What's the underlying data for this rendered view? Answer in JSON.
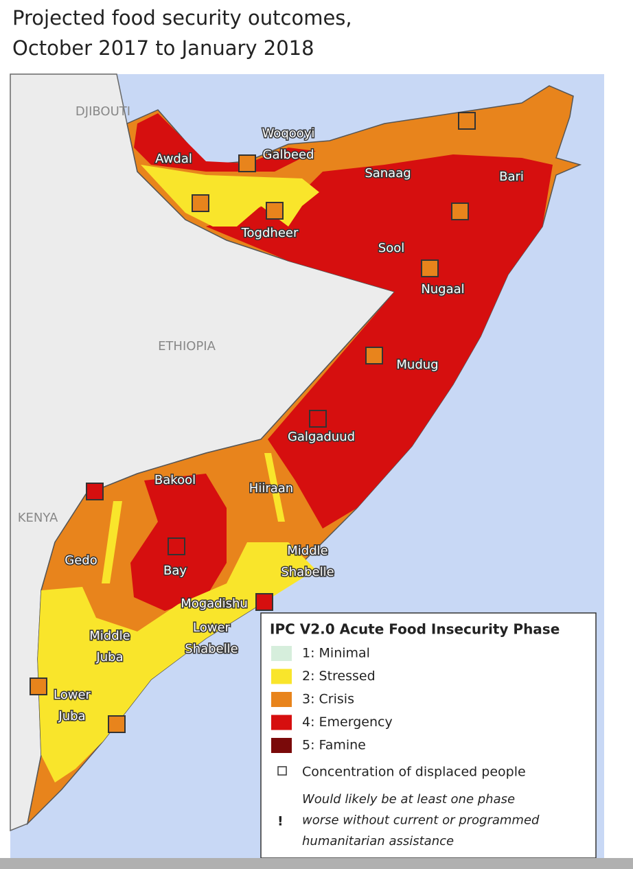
{
  "title": "Projected food security outcomes, October 2017 to January 2018",
  "countries": [
    "DJIBOUTI",
    "ETHIOPIA",
    "KENYA"
  ],
  "regions": [
    "Awdal",
    "Woqooyi Galbeed",
    "Sanaag",
    "Bari",
    "Togdheer",
    "Sool",
    "Nugaal",
    "Mudug",
    "Galgaduud",
    "Bakool",
    "Hiiraan",
    "Gedo",
    "Bay",
    "Middle Shabelle",
    "Mogadishu",
    "Lower Shabelle",
    "Middle Juba",
    "Lower Juba"
  ],
  "legend": {
    "title": "IPC V2.0 Acute Food Insecurity Phase",
    "phases": [
      {
        "label": "1: Minimal",
        "color": "#d6eedc"
      },
      {
        "label": "2: Stressed",
        "color": "#f9e52b"
      },
      {
        "label": "3: Crisis",
        "color": "#e8841c"
      },
      {
        "label": "4: Emergency",
        "color": "#d60f0f"
      },
      {
        "label": "5: Famine",
        "color": "#7a0a0a"
      }
    ],
    "displaced": "Concentration of displaced people",
    "note_mark": "!",
    "note": [
      "Would likely be at least one phase",
      "worse without current or programmed",
      "humanitarian assistance"
    ]
  }
}
